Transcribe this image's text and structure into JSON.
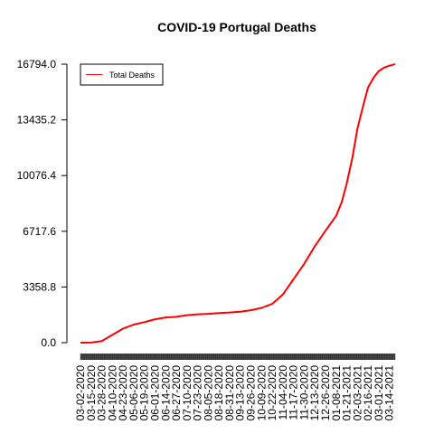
{
  "chart_data": {
    "type": "line",
    "title": "COVID-19 Portugal Deaths",
    "xlabel": "",
    "ylabel": "",
    "ylim": [
      0,
      16794.0
    ],
    "y_ticks": [
      "0.0",
      "3358.8",
      "6717.6",
      "10076.4",
      "13435.2",
      "16794.0"
    ],
    "x_tick_labels": [
      "03-02-2020",
      "03-15-2020",
      "03-28-2020",
      "04-10-2020",
      "04-23-2020",
      "05-06-2020",
      "05-19-2020",
      "06-01-2020",
      "06-14-2020",
      "06-27-2020",
      "07-10-2020",
      "07-23-2020",
      "08-05-2020",
      "08-18-2020",
      "08-31-2020",
      "09-13-2020",
      "09-26-2020",
      "10-09-2020",
      "10-22-2020",
      "11-04-2020",
      "11-17-2020",
      "11-30-2020",
      "12-13-2020",
      "12-26-2020",
      "01-08-2021",
      "01-21-2021",
      "02-03-2021",
      "02-16-2021",
      "03-01-2021",
      "03-14-2021"
    ],
    "legend": {
      "position": "top-left",
      "entries": [
        {
          "name": "Total Deaths",
          "color": "#ff0000"
        }
      ]
    },
    "grid": false,
    "series": [
      {
        "name": "Total Deaths",
        "color": "#ff0000",
        "x": [
          "2020-03-02",
          "2020-03-15",
          "2020-03-28",
          "2020-04-10",
          "2020-04-23",
          "2020-05-06",
          "2020-05-19",
          "2020-06-01",
          "2020-06-14",
          "2020-06-27",
          "2020-07-10",
          "2020-07-23",
          "2020-08-05",
          "2020-08-18",
          "2020-08-31",
          "2020-09-13",
          "2020-09-26",
          "2020-10-09",
          "2020-10-22",
          "2020-11-04",
          "2020-11-17",
          "2020-11-30",
          "2020-12-13",
          "2020-12-26",
          "2021-01-08",
          "2021-01-15",
          "2021-01-21",
          "2021-01-28",
          "2021-02-03",
          "2021-02-10",
          "2021-02-16",
          "2021-02-23",
          "2021-03-01",
          "2021-03-07",
          "2021-03-14",
          "2021-03-21"
        ],
        "values": [
          0,
          5,
          100,
          470,
          850,
          1090,
          1240,
          1410,
          1520,
          1560,
          1660,
          1710,
          1740,
          1790,
          1820,
          1870,
          1960,
          2100,
          2340,
          2900,
          3830,
          4750,
          5820,
          6750,
          7650,
          8500,
          9600,
          11200,
          12900,
          14300,
          15400,
          16000,
          16380,
          16570,
          16700,
          16794
        ]
      }
    ]
  }
}
